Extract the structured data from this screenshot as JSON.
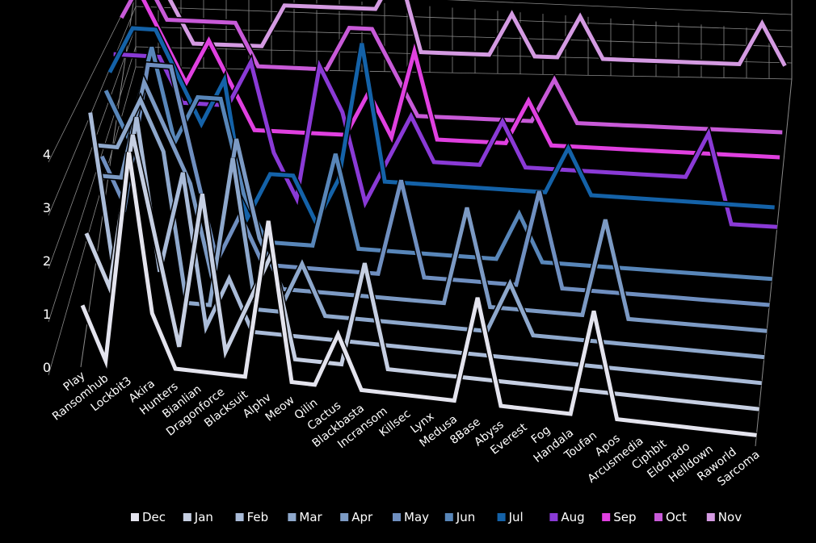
{
  "chart_data": {
    "type": "line",
    "variant": "3d-ribbon",
    "title": "",
    "xlabel": "",
    "ylabel": "",
    "ylim": [
      0,
      4
    ],
    "yticks": [
      "0",
      "1",
      "2",
      "3",
      "4"
    ],
    "grid": true,
    "legend_position": "bottom",
    "categories": [
      "Play",
      "Ransomhub",
      "Lockbit3",
      "Akira",
      "Hunters",
      "Bianlian",
      "Dragonforce",
      "Blacksuit",
      "Alphv",
      "Meow",
      "Qilin",
      "Cactus",
      "Blackbasta",
      "Incransom",
      "Killsec",
      "Lynx",
      "Medusa",
      "8Base",
      "Abyss",
      "Everest",
      "Fog",
      "Handala",
      "Toufan",
      "Apos",
      "Arcusmedia",
      "Ciphbit",
      "Eldorado",
      "Helldown",
      "Raworld",
      "Sarcoma"
    ],
    "series": [
      {
        "name": "Dec",
        "color": "#e4e4ee",
        "values": [
          1,
          0,
          4,
          1,
          0,
          0,
          0,
          0,
          3,
          0,
          0,
          1,
          0,
          0,
          0,
          0,
          0,
          2,
          0,
          0,
          0,
          0,
          2,
          0,
          0,
          0,
          0,
          0,
          0,
          0
        ]
      },
      {
        "name": "Jan",
        "color": "#c6cfe2",
        "values": [
          2,
          1,
          4,
          2,
          0,
          3,
          0,
          1,
          2,
          0,
          0,
          0,
          2,
          0,
          0,
          0,
          0,
          0,
          0,
          0,
          0,
          0,
          0,
          0,
          0,
          0,
          0,
          0,
          0,
          0
        ]
      },
      {
        "name": "Feb",
        "color": "#a9bbd8",
        "values": [
          4,
          1,
          4,
          1,
          3,
          0,
          1,
          0,
          0,
          0,
          0,
          0,
          0,
          0,
          0,
          0,
          0,
          0,
          0,
          0,
          0,
          0,
          0,
          0,
          0,
          0,
          0,
          0,
          0,
          0
        ]
      },
      {
        "name": "Mar",
        "color": "#8ea8cc",
        "values": [
          3,
          3,
          4,
          3,
          0,
          0,
          3,
          0,
          0,
          1,
          0,
          0,
          0,
          0,
          0,
          0,
          0,
          0,
          1,
          0,
          0,
          0,
          0,
          0,
          0,
          0,
          0,
          0,
          0,
          0
        ]
      },
      {
        "name": "Apr",
        "color": "#7c9ac4",
        "values": [
          2,
          2,
          4,
          3,
          2,
          0,
          3,
          1,
          0,
          0,
          0,
          0,
          0,
          0,
          0,
          0,
          2,
          0,
          0,
          0,
          0,
          0,
          2,
          0,
          0,
          0,
          0,
          0,
          0,
          0
        ]
      },
      {
        "name": "May",
        "color": "#6f8fc0",
        "values": [
          2,
          1,
          4,
          4,
          2,
          0,
          1,
          0,
          0,
          0,
          0,
          0,
          0,
          2,
          0,
          0,
          0,
          0,
          0,
          2,
          0,
          0,
          0,
          0,
          0,
          0,
          0,
          0,
          0,
          0
        ]
      },
      {
        "name": "Jun",
        "color": "#5886b9",
        "values": [
          3,
          2,
          4,
          2,
          3,
          3,
          1,
          0,
          0,
          0,
          2,
          0,
          0,
          0,
          0,
          0,
          0,
          0,
          1,
          0,
          0,
          0,
          0,
          0,
          0,
          0,
          0,
          0,
          0,
          0
        ]
      },
      {
        "name": "Jul",
        "color": "#1462a8",
        "values": [
          3,
          4,
          4,
          3,
          2,
          3,
          0,
          1,
          1,
          0,
          1,
          4,
          1,
          1,
          1,
          1,
          1,
          1,
          1,
          1,
          2,
          1,
          1,
          1,
          1,
          1,
          1,
          1,
          1,
          1
        ]
      },
      {
        "name": "Aug",
        "color": "#8a3ad6",
        "values": [
          3,
          3,
          3,
          2,
          2,
          2,
          3,
          1,
          0,
          3,
          2,
          0,
          1,
          2,
          1,
          1,
          1,
          2,
          1,
          1,
          1,
          1,
          1,
          1,
          1,
          1,
          2,
          0,
          0,
          0
        ]
      },
      {
        "name": "Sep",
        "color": "#e040e0",
        "values": [
          4,
          4,
          3,
          2,
          3,
          2,
          1,
          1,
          1,
          1,
          1,
          2,
          1,
          3,
          1,
          1,
          1,
          1,
          2,
          1,
          1,
          1,
          1,
          1,
          1,
          1,
          1,
          1,
          1,
          1
        ]
      },
      {
        "name": "Oct",
        "color": "#c85ad8",
        "values": [
          3,
          4,
          3,
          3,
          3,
          3,
          2,
          2,
          2,
          2,
          3,
          3,
          2,
          1,
          1,
          1,
          1,
          1,
          1,
          2,
          1,
          1,
          1,
          1,
          1,
          1,
          1,
          1,
          1,
          1
        ]
      },
      {
        "name": "Nov",
        "color": "#d49ae2",
        "values": [
          4,
          4,
          3,
          2,
          2,
          2,
          2,
          3,
          3,
          3,
          3,
          3,
          4,
          2,
          2,
          2,
          2,
          3,
          2,
          2,
          3,
          2,
          2,
          2,
          2,
          2,
          2,
          2,
          3,
          2
        ]
      }
    ]
  }
}
